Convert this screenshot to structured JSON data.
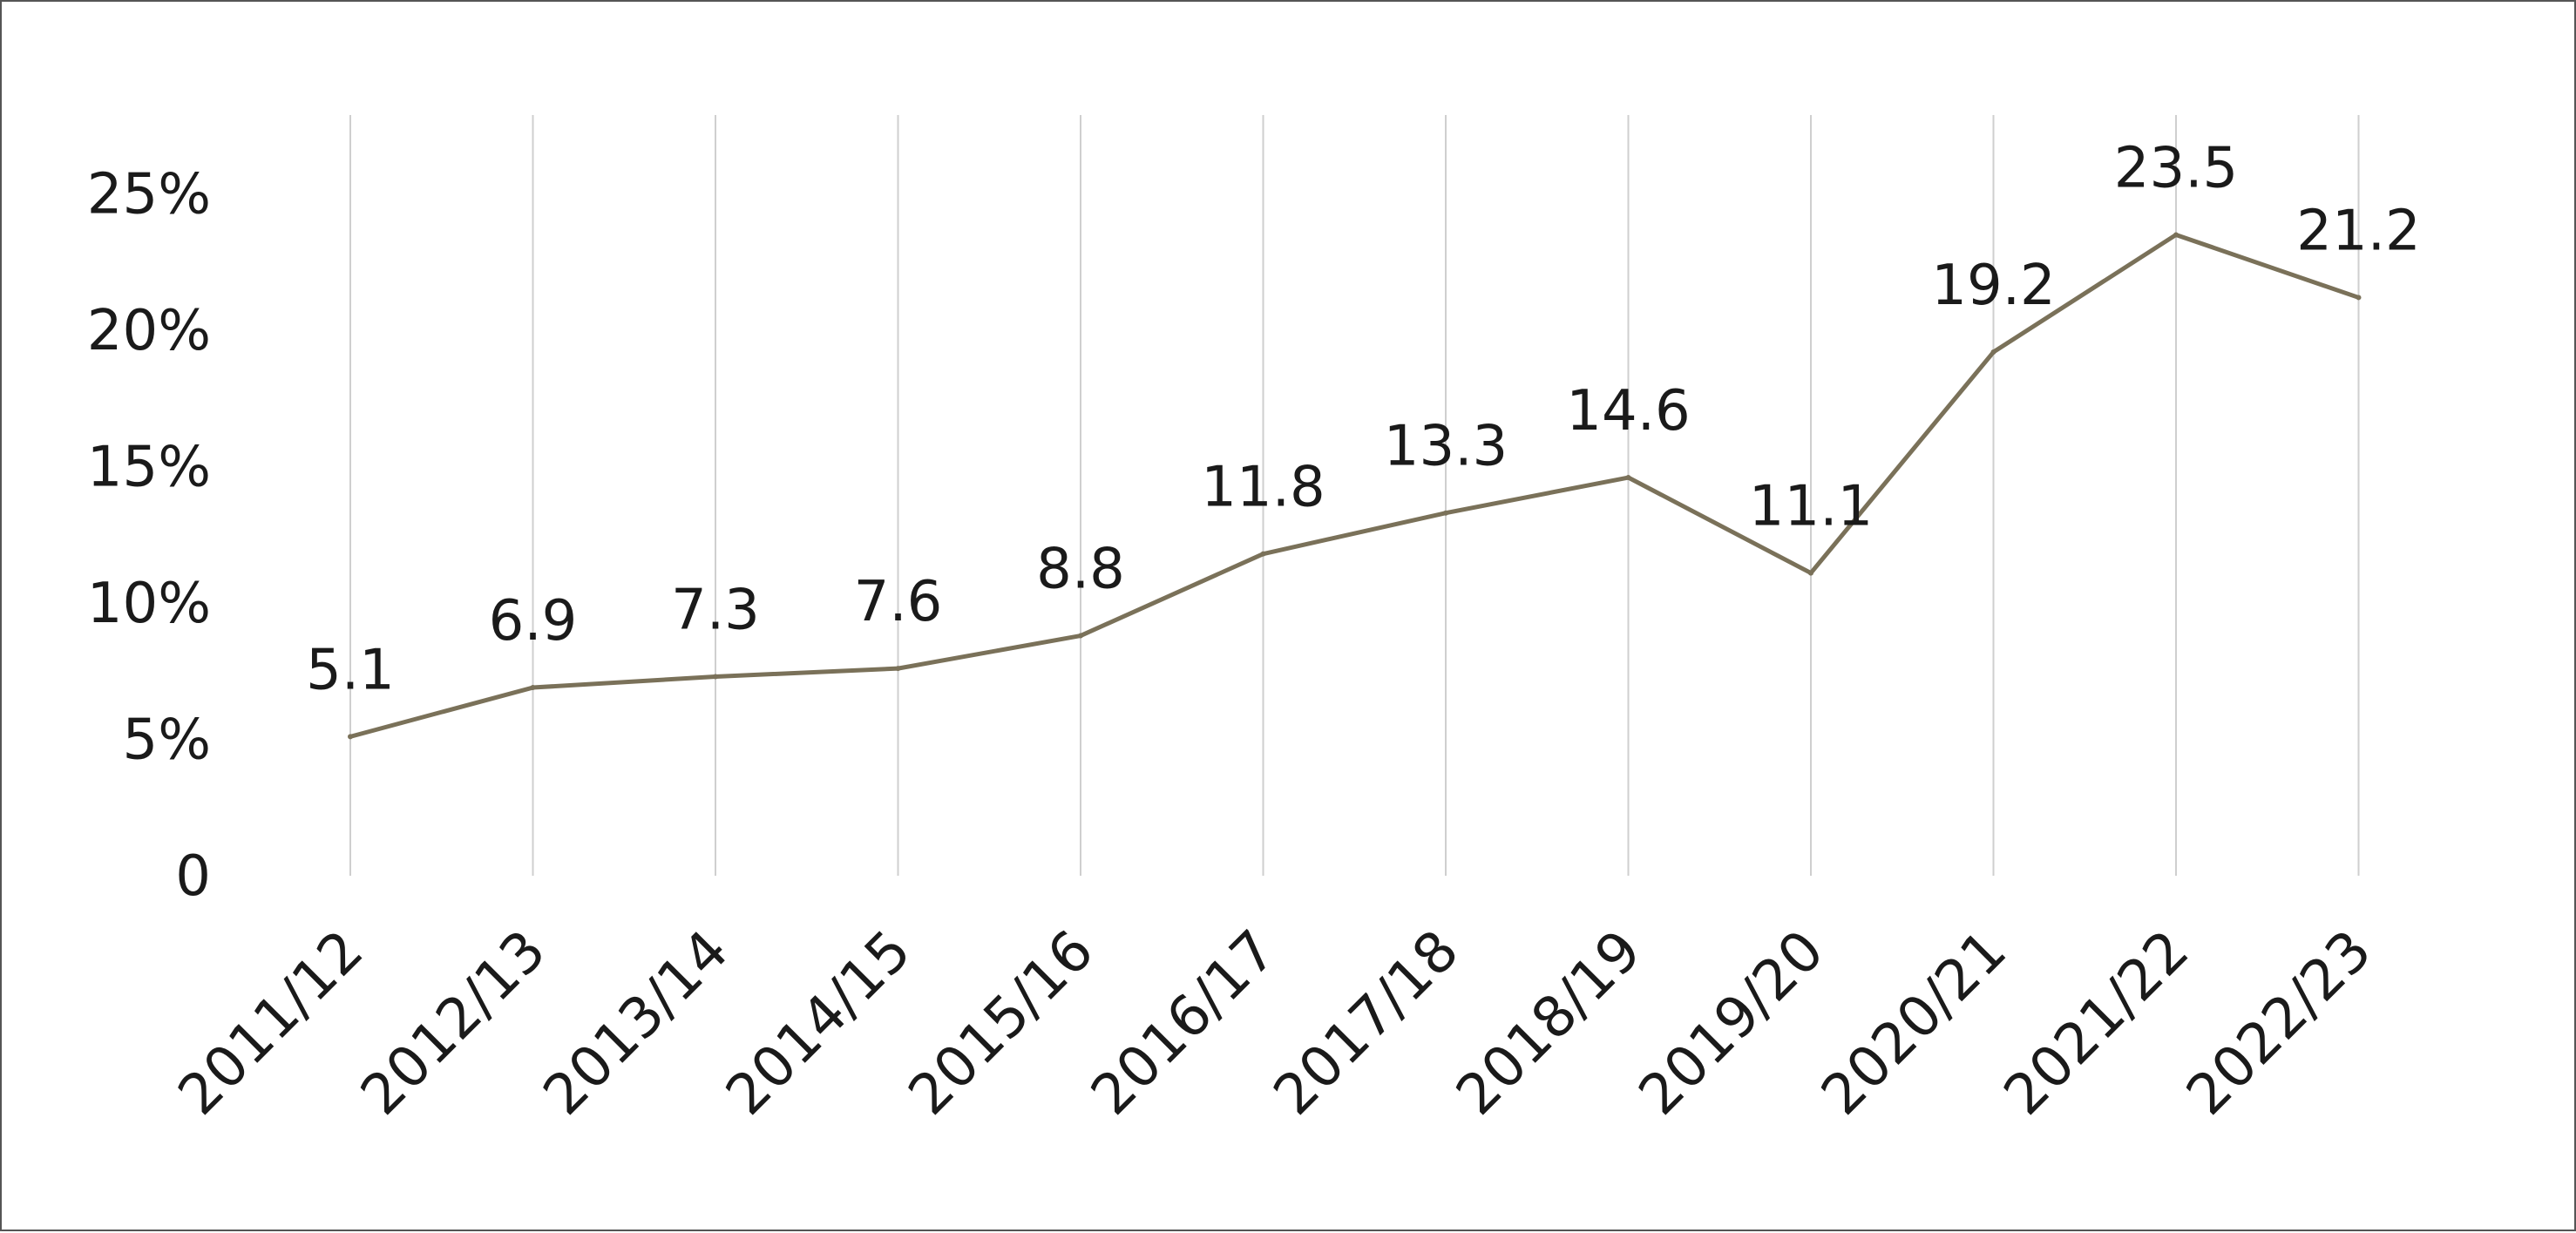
{
  "chart_data": {
    "type": "line",
    "categories": [
      "2011/12",
      "2012/13",
      "2013/14",
      "2014/15",
      "2015/16",
      "2016/17",
      "2017/18",
      "2018/19",
      "2019/20",
      "2020/21",
      "2021/22",
      "2022/23"
    ],
    "series": [
      {
        "values": [
          5.1,
          6.9,
          7.3,
          7.6,
          8.8,
          11.8,
          13.3,
          14.6,
          11.1,
          19.2,
          23.5,
          21.2
        ]
      }
    ],
    "data_labels": [
      "5.1",
      "6.9",
      "7.3",
      "7.6",
      "8.8",
      "11.8",
      "13.3",
      "14.6",
      "11.1",
      "19.2",
      "23.5",
      "21.2"
    ],
    "y_ticks": [
      {
        "value": 0,
        "label": "0"
      },
      {
        "value": 5,
        "label": "5%"
      },
      {
        "value": 10,
        "label": "10%"
      },
      {
        "value": 15,
        "label": "15%"
      },
      {
        "value": 20,
        "label": "20%"
      },
      {
        "value": 25,
        "label": "25%"
      }
    ],
    "ylim": [
      0,
      25
    ],
    "title": "",
    "xlabel": "",
    "ylabel": "",
    "grid": "vertical",
    "colors": {
      "line": "#7a7159",
      "grid": "#cfcfcf",
      "text": "#1a1a1a",
      "border": "#555555"
    }
  }
}
